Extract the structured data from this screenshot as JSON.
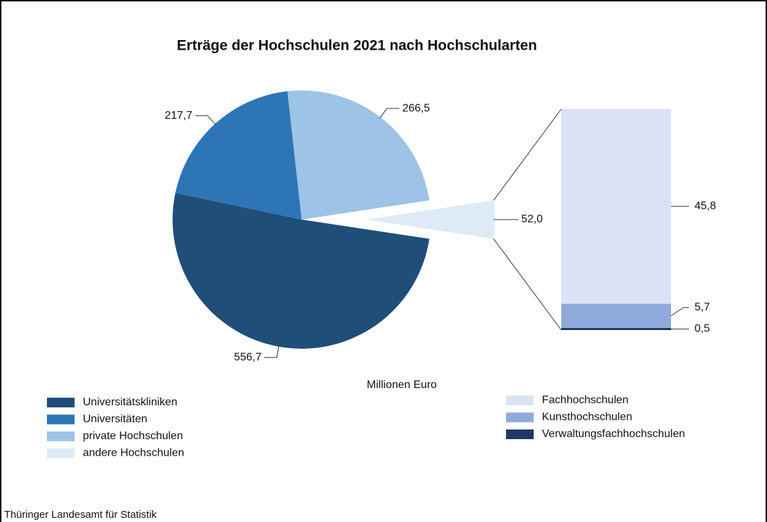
{
  "chart_data": {
    "type": "pie",
    "title": "Erträge der Hochschulen 2021 nach Hochschularten",
    "axis_label": "Millionen Euro",
    "categories": [
      "Universitätskliniken",
      "Universitäten",
      "private Hochschulen",
      "andere Hochschulen"
    ],
    "values": [
      556.7,
      217.7,
      266.5,
      52.0
    ],
    "value_labels": [
      "556,7",
      "217,7",
      "266,5",
      "52,0"
    ],
    "colors": [
      "#1f4e79",
      "#2e75b6",
      "#9dc3e6",
      "#deebf7"
    ],
    "breakdown": {
      "type": "bar",
      "categories": [
        "Fachhochschulen",
        "Kunsthochschulen",
        "Verwaltungsfachhochschulen"
      ],
      "values": [
        45.8,
        5.7,
        0.5
      ],
      "value_labels": [
        "45,8",
        "5,7",
        "0,5"
      ],
      "colors": [
        "#dae3f3",
        "#8faadc",
        "#203864"
      ]
    }
  },
  "source": "Thüringer Landesamt für Statistik"
}
